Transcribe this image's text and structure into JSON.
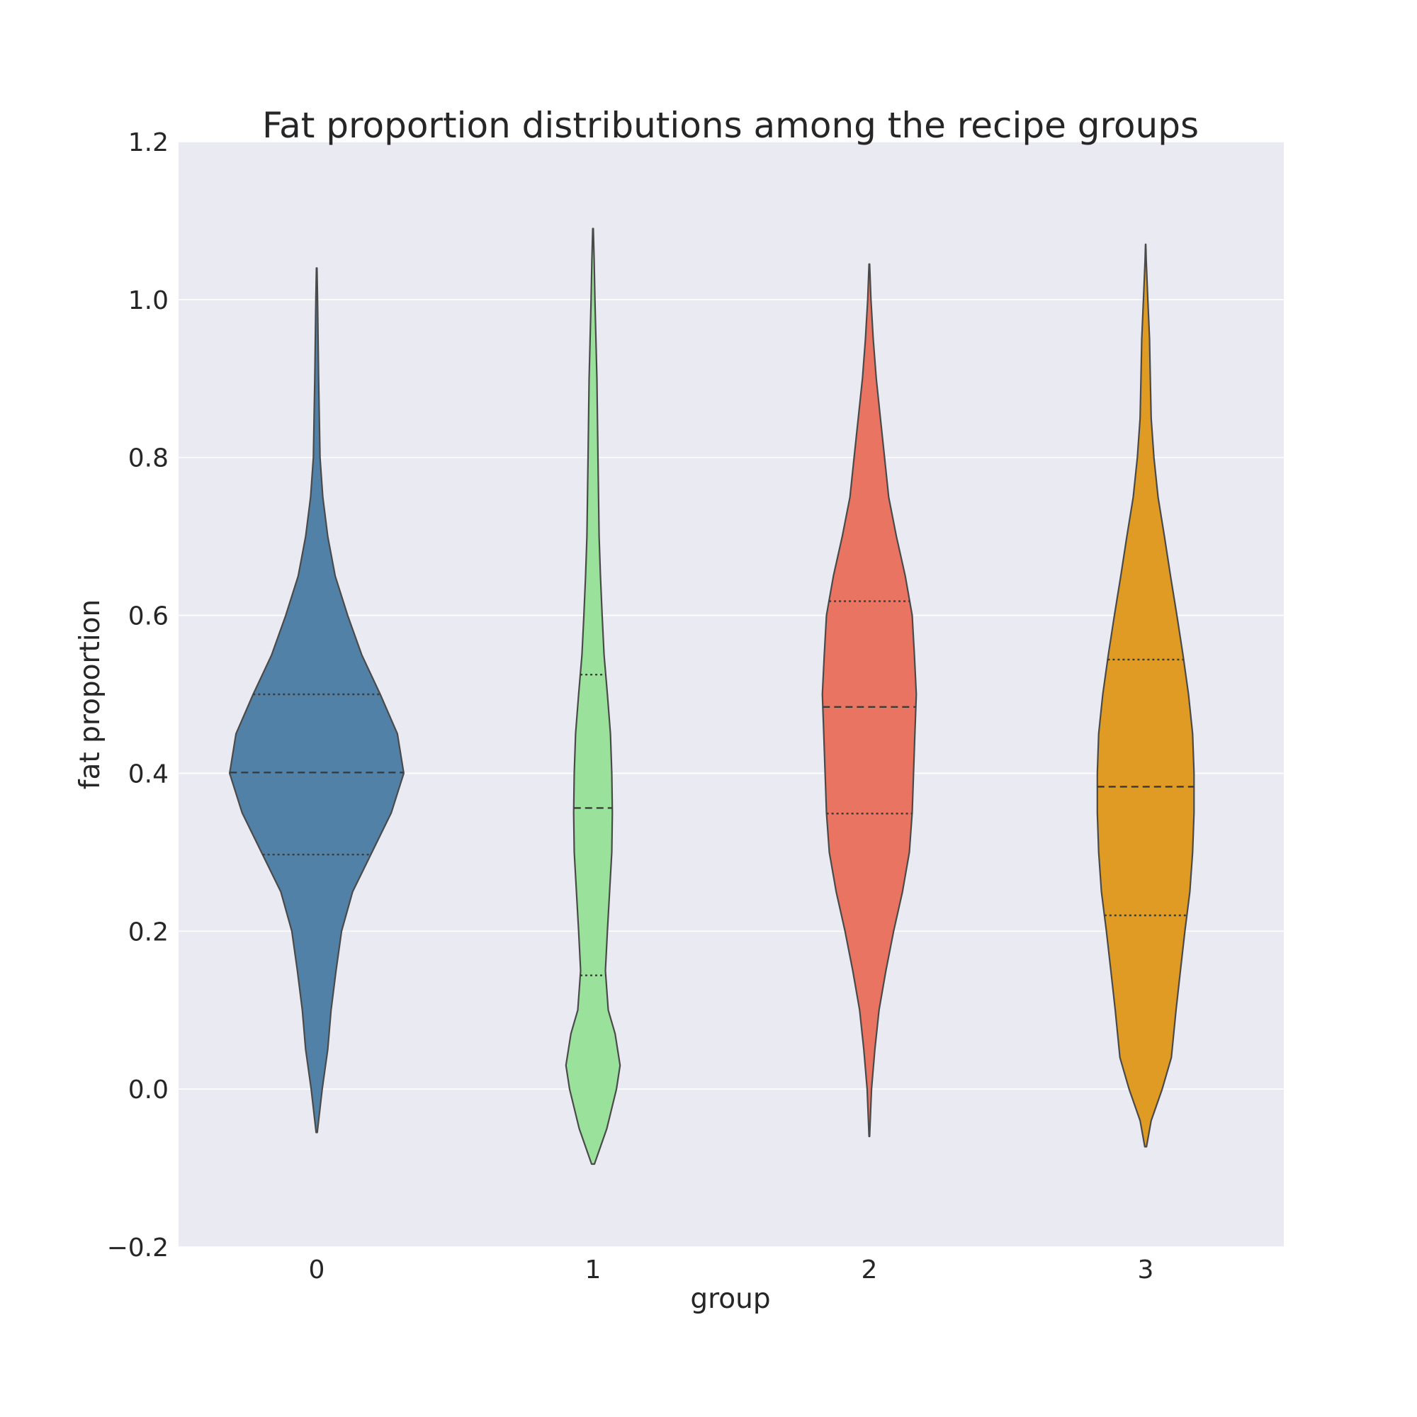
{
  "chart_data": {
    "type": "violin",
    "title": "Fat proportion distributions among the recipe groups",
    "xlabel": "group",
    "ylabel": "fat proportion",
    "ylim": [
      -0.2,
      1.2
    ],
    "yticks": [
      -0.2,
      0.0,
      0.2,
      0.4,
      0.6,
      0.8,
      1.0,
      1.2
    ],
    "ytick_labels": [
      "−0.2",
      "0.0",
      "0.2",
      "0.4",
      "0.6",
      "0.8",
      "1.0",
      "1.2"
    ],
    "categories": [
      "0",
      "1",
      "2",
      "3"
    ],
    "grid": true,
    "inner": "quartile",
    "violins": [
      {
        "group": "0",
        "color": "#5181a7",
        "min": -0.055,
        "max": 1.04,
        "q1": 0.297,
        "median": 0.401,
        "q3": 0.5,
        "profile": [
          [
            -0.055,
            0.002
          ],
          [
            0.0,
            0.02
          ],
          [
            0.05,
            0.04
          ],
          [
            0.1,
            0.052
          ],
          [
            0.15,
            0.07
          ],
          [
            0.2,
            0.09
          ],
          [
            0.25,
            0.13
          ],
          [
            0.3,
            0.2
          ],
          [
            0.35,
            0.27
          ],
          [
            0.4,
            0.315
          ],
          [
            0.45,
            0.292
          ],
          [
            0.5,
            0.23
          ],
          [
            0.55,
            0.163
          ],
          [
            0.6,
            0.112
          ],
          [
            0.65,
            0.067
          ],
          [
            0.7,
            0.04
          ],
          [
            0.75,
            0.022
          ],
          [
            0.8,
            0.012
          ],
          [
            0.9,
            0.007
          ],
          [
            1.0,
            0.003
          ],
          [
            1.04,
            0.001
          ]
        ]
      },
      {
        "group": "1",
        "color": "#9ae29b",
        "min": -0.095,
        "max": 1.09,
        "q1": 0.144,
        "median": 0.356,
        "q3": 0.525,
        "profile": [
          [
            -0.095,
            0.005
          ],
          [
            -0.05,
            0.05
          ],
          [
            0.0,
            0.085
          ],
          [
            0.03,
            0.098
          ],
          [
            0.07,
            0.08
          ],
          [
            0.1,
            0.055
          ],
          [
            0.15,
            0.045
          ],
          [
            0.2,
            0.052
          ],
          [
            0.25,
            0.06
          ],
          [
            0.3,
            0.068
          ],
          [
            0.35,
            0.07
          ],
          [
            0.4,
            0.068
          ],
          [
            0.45,
            0.063
          ],
          [
            0.5,
            0.052
          ],
          [
            0.55,
            0.04
          ],
          [
            0.6,
            0.033
          ],
          [
            0.65,
            0.027
          ],
          [
            0.7,
            0.022
          ],
          [
            0.75,
            0.02
          ],
          [
            0.8,
            0.018
          ],
          [
            0.9,
            0.014
          ],
          [
            1.0,
            0.007
          ],
          [
            1.05,
            0.004
          ],
          [
            1.09,
            0.001
          ]
        ]
      },
      {
        "group": "2",
        "color": "#e87461",
        "min": -0.06,
        "max": 1.045,
        "q1": 0.349,
        "median": 0.484,
        "q3": 0.618,
        "profile": [
          [
            -0.06,
            0.001
          ],
          [
            0.0,
            0.008
          ],
          [
            0.05,
            0.02
          ],
          [
            0.1,
            0.035
          ],
          [
            0.15,
            0.06
          ],
          [
            0.2,
            0.088
          ],
          [
            0.25,
            0.12
          ],
          [
            0.3,
            0.145
          ],
          [
            0.35,
            0.155
          ],
          [
            0.4,
            0.16
          ],
          [
            0.45,
            0.165
          ],
          [
            0.5,
            0.17
          ],
          [
            0.55,
            0.163
          ],
          [
            0.6,
            0.155
          ],
          [
            0.65,
            0.13
          ],
          [
            0.7,
            0.098
          ],
          [
            0.75,
            0.07
          ],
          [
            0.8,
            0.055
          ],
          [
            0.85,
            0.04
          ],
          [
            0.9,
            0.025
          ],
          [
            0.95,
            0.014
          ],
          [
            1.0,
            0.006
          ],
          [
            1.045,
            0.001
          ]
        ]
      },
      {
        "group": "3",
        "color": "#df9b23",
        "min": -0.073,
        "max": 1.07,
        "q1": 0.22,
        "median": 0.383,
        "q3": 0.544,
        "profile": [
          [
            -0.073,
            0.003
          ],
          [
            -0.04,
            0.02
          ],
          [
            0.0,
            0.06
          ],
          [
            0.04,
            0.093
          ],
          [
            0.1,
            0.11
          ],
          [
            0.15,
            0.126
          ],
          [
            0.2,
            0.142
          ],
          [
            0.25,
            0.16
          ],
          [
            0.3,
            0.17
          ],
          [
            0.35,
            0.175
          ],
          [
            0.4,
            0.175
          ],
          [
            0.45,
            0.17
          ],
          [
            0.5,
            0.155
          ],
          [
            0.55,
            0.135
          ],
          [
            0.6,
            0.113
          ],
          [
            0.65,
            0.09
          ],
          [
            0.7,
            0.068
          ],
          [
            0.75,
            0.045
          ],
          [
            0.8,
            0.03
          ],
          [
            0.85,
            0.02
          ],
          [
            0.9,
            0.017
          ],
          [
            0.95,
            0.014
          ],
          [
            1.0,
            0.008
          ],
          [
            1.05,
            0.002
          ],
          [
            1.07,
            0.0005
          ]
        ]
      }
    ]
  }
}
